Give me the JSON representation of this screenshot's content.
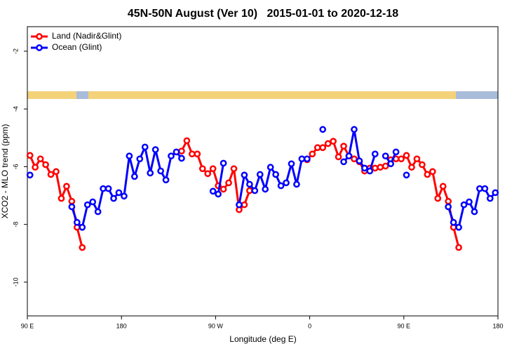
{
  "chart_data": {
    "type": "line",
    "title": "45N-50N August (Ver 10)   2015-01-01 to 2020-12-18",
    "x_label": "Longitude (deg E)",
    "y_label": "XCO2 - MLO trend (ppm)",
    "legend": "top-left",
    "xlim": [
      90,
      540
    ],
    "xticks": [
      {
        "value": 90,
        "label": "90 E"
      },
      {
        "value": 180,
        "label": "180"
      },
      {
        "value": 270,
        "label": "90 W"
      },
      {
        "value": 360,
        "label": "0"
      },
      {
        "value": 450,
        "label": "90 E"
      },
      {
        "value": 540,
        "label": "180"
      }
    ],
    "ylim": [
      -11.17,
      -1.15
    ],
    "yticks": [
      -10,
      -8,
      -6,
      -4,
      -2
    ],
    "x": [
      92.5,
      97.5,
      102.5,
      107.5,
      112.5,
      117.5,
      122.5,
      127.5,
      132.5,
      137.5,
      142.5,
      147.5,
      152.5,
      157.5,
      162.5,
      167.5,
      172.5,
      177.5,
      182.5,
      187.5,
      192.5,
      197.5,
      202.5,
      207.5,
      212.5,
      217.5,
      222.5,
      227.5,
      232.5,
      237.5,
      242.5,
      247.5,
      252.5,
      257.5,
      262.5,
      267.5,
      272.5,
      277.5,
      282.5,
      287.5,
      292.5,
      297.5,
      302.5,
      307.5,
      312.5,
      317.5,
      322.5,
      327.5,
      332.5,
      337.5,
      342.5,
      347.5,
      352.5,
      357.5,
      362.5,
      367.5,
      372.5,
      377.5,
      382.5,
      387.5,
      392.5,
      397.5,
      402.5,
      407.5,
      412.5,
      417.5,
      422.5,
      427.5,
      432.5,
      437.5,
      442.5,
      447.5,
      452.5,
      457.5,
      462.5,
      467.5,
      472.5,
      477.5,
      482.5,
      487.5,
      492.5,
      497.5,
      502.5,
      507.5,
      512.5,
      517.5,
      522.5,
      527.5,
      532.5,
      537.5
    ],
    "series": [
      {
        "name": "Land (Nadir&Glint)",
        "color": "#ff0000",
        "values": [
          -5.61,
          -6.02,
          -5.73,
          -5.93,
          -6.27,
          -6.17,
          -7.1,
          -6.68,
          -7.2,
          -8.1,
          -8.8,
          null,
          null,
          null,
          null,
          null,
          null,
          null,
          null,
          null,
          null,
          null,
          null,
          null,
          null,
          null,
          null,
          null,
          null,
          -5.46,
          -5.1,
          -5.56,
          -5.56,
          -6.07,
          -6.24,
          -6.07,
          -6.66,
          -6.78,
          -6.56,
          -6.07,
          -7.49,
          -7.32,
          -6.83,
          null,
          null,
          null,
          null,
          null,
          null,
          null,
          null,
          null,
          null,
          -5.76,
          -5.56,
          -5.34,
          -5.34,
          -5.2,
          -5.12,
          -5.66,
          -5.29,
          -5.63,
          -5.73,
          -5.83,
          -6.15,
          -6.05,
          -6.05,
          -6.02,
          -5.98,
          -5.76,
          -5.73,
          -5.73,
          -5.61,
          -6.02,
          -5.73,
          -5.93,
          -6.27,
          -6.17,
          -7.1,
          -6.68,
          -7.2,
          -8.1,
          -8.8,
          null,
          null,
          null,
          null,
          null,
          null,
          null
        ]
      },
      {
        "name": "Ocean (Glint)",
        "color": "#0000ff",
        "values": [
          -6.29,
          null,
          null,
          null,
          null,
          null,
          null,
          null,
          -7.39,
          -7.93,
          -8.1,
          -7.32,
          -7.22,
          -7.56,
          -6.76,
          -6.76,
          -7.1,
          -6.9,
          -7.02,
          -5.63,
          -6.34,
          -5.73,
          -5.32,
          -6.22,
          -5.41,
          -6.15,
          -6.46,
          -5.63,
          -5.49,
          -5.71,
          null,
          null,
          null,
          null,
          null,
          -6.85,
          -6.95,
          -5.88,
          null,
          null,
          -7.32,
          -6.29,
          -6.61,
          -6.83,
          -6.27,
          -6.78,
          -6.02,
          -6.27,
          -6.66,
          -6.56,
          -5.9,
          -6.61,
          -5.73,
          -5.73,
          null,
          null,
          -4.71,
          null,
          null,
          null,
          -5.83,
          -5.63,
          -4.71,
          -5.8,
          -6.05,
          -6.15,
          -5.56,
          null,
          -5.63,
          -5.9,
          -5.49,
          null,
          -6.29,
          null,
          null,
          null,
          null,
          null,
          null,
          null,
          -7.39,
          -7.93,
          -8.1,
          -7.32,
          -7.22,
          -7.56,
          -6.76,
          -6.76,
          -7.1,
          -6.9
        ]
      }
    ]
  }
}
